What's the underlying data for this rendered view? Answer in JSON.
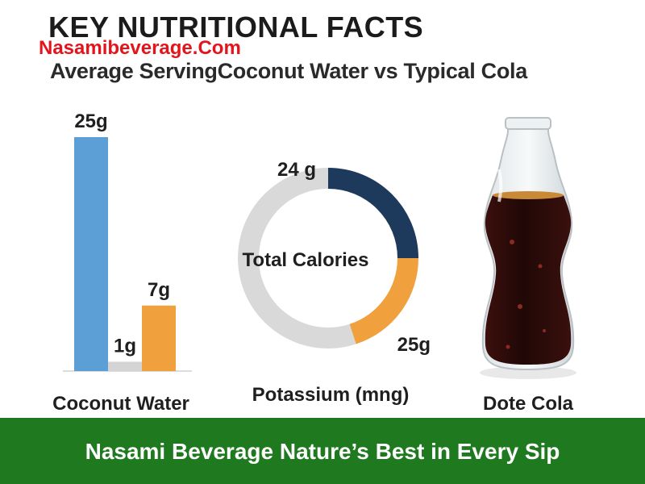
{
  "header": {
    "title": "KEY NUTRITIONAL FACTS",
    "watermark": "Nasamibeverage.Com",
    "subtitle": "Average ServingCoconut Water vs Typical Cola"
  },
  "captions": {
    "left": "Coconut Water",
    "middle": "Potassium (mng)",
    "right": "Dote Cola"
  },
  "footer": {
    "text": "Nasami Beverage Nature’s Best in Every Sip",
    "color": "#1f7a1f"
  },
  "colors": {
    "blue": "#5b9fd6",
    "gray": "#d4d4d4",
    "orange": "#f0a03c",
    "navy": "#1d3a5c",
    "cola": "#2a0d0b"
  },
  "chart_data": [
    {
      "type": "bar",
      "categories": [
        "",
        "",
        ""
      ],
      "values": [
        25,
        1,
        7
      ],
      "data_labels": [
        "25g",
        "1g",
        "7g"
      ],
      "colors": [
        "#5b9fd6",
        "#d4d4d4",
        "#f0a03c"
      ],
      "xlabel": "Coconut Water",
      "ylim": [
        0,
        25
      ]
    },
    {
      "type": "pie",
      "center_label": "Total Calories",
      "slices": [
        {
          "label": "24 g",
          "value": 25,
          "color": "#1d3a5c"
        },
        {
          "label": "25g",
          "value": 20,
          "color": "#f0a03c"
        },
        {
          "label": "",
          "value": 55,
          "color": "#d9d9d9"
        }
      ],
      "xlabel": "Potassium (mng)"
    }
  ],
  "bottle": {
    "label": "Dote Cola",
    "icon": "cola-bottle-icon"
  }
}
